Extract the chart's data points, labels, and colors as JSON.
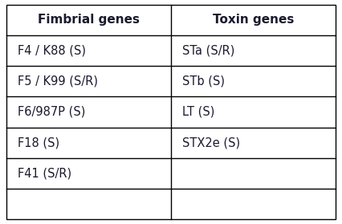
{
  "headers": [
    "Fimbrial genes",
    "Toxin genes"
  ],
  "fimbrial": [
    "F4 / K88 (S)",
    "F5 / K99 (S/R)",
    "F6/987P (S)",
    "F18 (S)",
    "F41 (S/R)",
    ""
  ],
  "toxin": [
    "STa (S/R)",
    "STb (S)",
    "LT (S)",
    "STX2e (S)",
    "",
    ""
  ],
  "bg_color": "#ffffff",
  "border_color": "#000000",
  "header_text_color": "#1a1a2e",
  "cell_text_color": "#1a1a2e",
  "header_fontsize": 11,
  "cell_fontsize": 10.5,
  "fig_width": 4.26,
  "fig_height": 2.79,
  "dpi": 100
}
